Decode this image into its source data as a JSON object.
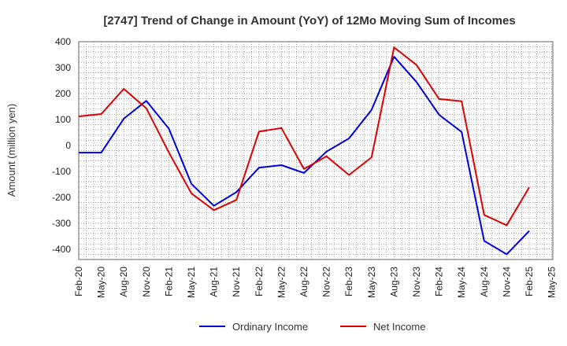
{
  "chart_data": {
    "type": "line",
    "title": "[2747]  Trend of Change in Amount (YoY) of 12Mo Moving Sum of Incomes",
    "ylabel": "Amount (million yen)",
    "ylim": [
      -440,
      400
    ],
    "yticks": [
      400,
      300,
      200,
      100,
      0,
      -100,
      -200,
      -300,
      -400
    ],
    "x_tick_labels": [
      "Feb-20",
      "May-20",
      "Aug-20",
      "Nov-20",
      "Feb-21",
      "May-21",
      "Aug-21",
      "Nov-21",
      "Feb-22",
      "May-22",
      "Aug-22",
      "Nov-22",
      "Feb-23",
      "May-23",
      "Aug-23",
      "Nov-23",
      "Feb-24",
      "May-24",
      "Aug-24",
      "Nov-24",
      "Feb-25",
      "May-25"
    ],
    "grid": true,
    "legend_position": "bottom-center",
    "series": [
      {
        "name": "Ordinary Income",
        "color": "#0000dd",
        "values": [
          -28,
          -28,
          103,
          172,
          65,
          -148,
          -233,
          -180,
          -86,
          -76,
          -106,
          -24,
          27,
          137,
          342,
          244,
          118,
          52,
          -368,
          -420,
          -330
        ]
      },
      {
        "name": "Net Income",
        "color": "#dd0000",
        "values": [
          112,
          121,
          218,
          143,
          -27,
          -185,
          -250,
          -210,
          53,
          67,
          -91,
          -42,
          -114,
          -46,
          378,
          310,
          179,
          170,
          -268,
          -308,
          -162
        ]
      }
    ]
  }
}
